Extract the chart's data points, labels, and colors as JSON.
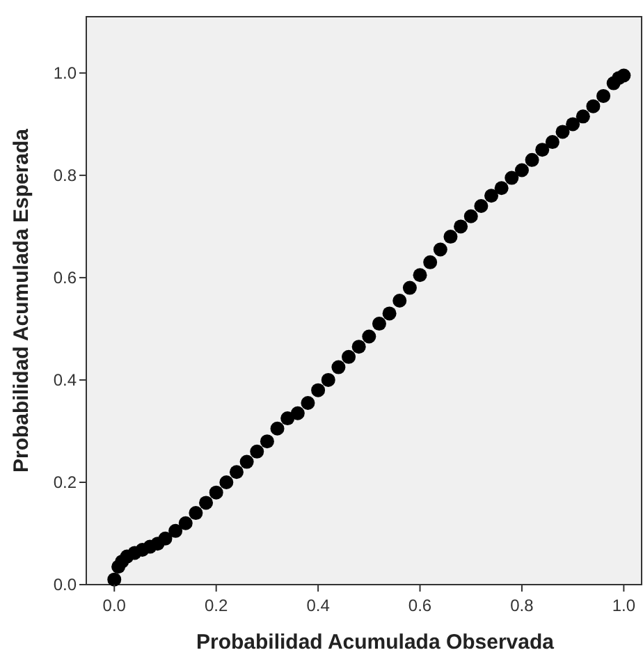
{
  "chart_data": {
    "type": "scatter",
    "xlabel": "Probabilidad Acumulada Observada",
    "ylabel": "Probabilidad Acumulada Esperada",
    "xlim": [
      -0.055,
      1.035
    ],
    "ylim": [
      0,
      1.11
    ],
    "xticks": [
      {
        "value": 0,
        "label": "0.0"
      },
      {
        "value": 0.2,
        "label": "0.2"
      },
      {
        "value": 0.4,
        "label": "0.4"
      },
      {
        "value": 0.6,
        "label": "0.6"
      },
      {
        "value": 0.8,
        "label": "0.8"
      },
      {
        "value": 1,
        "label": "1.0"
      }
    ],
    "yticks": [
      {
        "value": 0,
        "label": "0.0"
      },
      {
        "value": 0.2,
        "label": "0.2"
      },
      {
        "value": 0.4,
        "label": "0.4"
      },
      {
        "value": 0.6,
        "label": "0.6"
      },
      {
        "value": 0.8,
        "label": "0.8"
      },
      {
        "value": 1,
        "label": "1.0"
      }
    ],
    "grid": false,
    "marker": "circle",
    "series": [
      {
        "color": "#000000",
        "x": [
          0,
          0.008,
          0.015,
          0.025,
          0.04,
          0.055,
          0.07,
          0.085,
          0.1,
          0.12,
          0.14,
          0.16,
          0.18,
          0.2,
          0.22,
          0.24,
          0.26,
          0.28,
          0.3,
          0.32,
          0.34,
          0.36,
          0.38,
          0.4,
          0.42,
          0.44,
          0.46,
          0.48,
          0.5,
          0.52,
          0.54,
          0.56,
          0.58,
          0.6,
          0.62,
          0.64,
          0.66,
          0.68,
          0.7,
          0.72,
          0.74,
          0.76,
          0.78,
          0.8,
          0.82,
          0.84,
          0.86,
          0.88,
          0.9,
          0.92,
          0.94,
          0.96,
          0.98,
          0.99,
          1.0
        ],
        "values": [
          0.01,
          0.035,
          0.045,
          0.055,
          0.062,
          0.068,
          0.074,
          0.08,
          0.09,
          0.105,
          0.12,
          0.14,
          0.16,
          0.18,
          0.2,
          0.22,
          0.24,
          0.26,
          0.28,
          0.305,
          0.325,
          0.335,
          0.355,
          0.38,
          0.4,
          0.425,
          0.445,
          0.465,
          0.485,
          0.51,
          0.53,
          0.555,
          0.58,
          0.605,
          0.63,
          0.655,
          0.68,
          0.7,
          0.72,
          0.74,
          0.76,
          0.775,
          0.795,
          0.81,
          0.83,
          0.85,
          0.865,
          0.885,
          0.9,
          0.915,
          0.935,
          0.955,
          0.98,
          0.99,
          0.995
        ]
      }
    ]
  }
}
